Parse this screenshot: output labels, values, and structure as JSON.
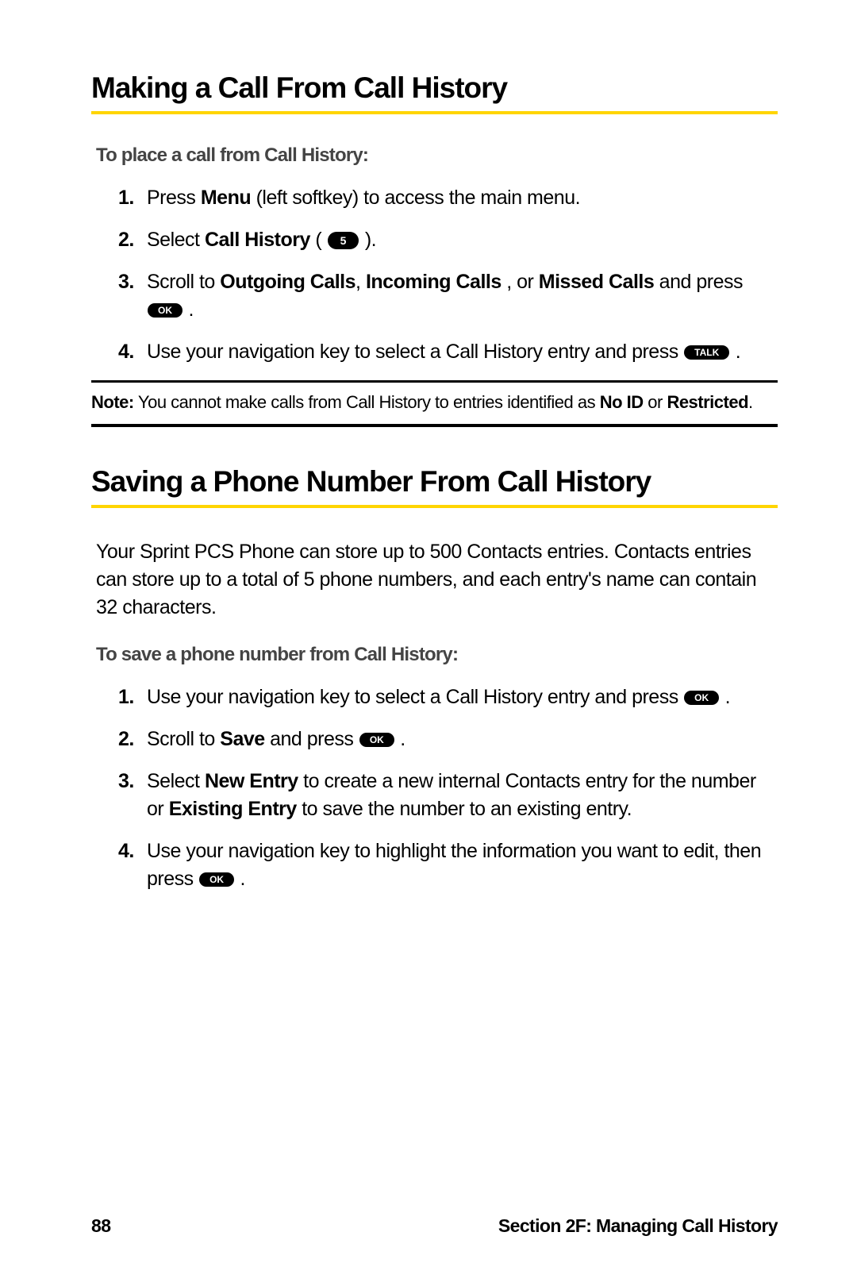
{
  "colors": {
    "underline": "#ffd500",
    "background": "#ffffff",
    "text": "#000000",
    "subheading": "#444444",
    "key_bg": "#000000",
    "key_fg": "#ffffff"
  },
  "section1": {
    "heading": "Making a Call From Call History",
    "subheading": "To place a call from Call History:",
    "step1_pre": "Press ",
    "step1_bold": "Menu",
    "step1_post": " (left softkey) to access the main menu.",
    "step2_pre": "Select ",
    "step2_bold": "Call History",
    "step2_post_a": " ( ",
    "step2_key": "5",
    "step2_post_b": " ).",
    "step3_pre": "Scroll to ",
    "step3_bold1": "Outgoing Calls",
    "step3_sep1": ", ",
    "step3_bold2": "Incoming Calls",
    "step3_sep2": " , or ",
    "step3_bold3": "Missed Calls",
    "step3_post_a": " and press ",
    "step3_key": "OK",
    "step3_post_b": " .",
    "step4_pre": "Use your navigation key to select a Call History entry and press ",
    "step4_key": "TALK",
    "step4_post": " ."
  },
  "note": {
    "label": "Note:",
    "text_a": " You cannot make calls from Call History to entries identified as ",
    "bold1": "No ID",
    "text_b": " or ",
    "bold2": "Restricted",
    "text_c": "."
  },
  "section2": {
    "heading": "Saving a Phone Number From Call History",
    "intro": "Your Sprint PCS Phone can store up to 500 Contacts entries. Contacts entries can store up to a total of 5 phone numbers, and each entry's name can contain 32 characters.",
    "subheading": "To save a phone number from Call History:",
    "step1_pre": "Use your navigation key to select a Call History entry and press ",
    "step1_key": "OK",
    "step1_post": " .",
    "step2_pre": "Scroll to ",
    "step2_bold": "Save",
    "step2_mid": " and press ",
    "step2_key": "OK",
    "step2_post": " .",
    "step3_pre": "Select ",
    "step3_bold1": "New Entry",
    "step3_mid1": " to create a new internal Contacts entry for the number or ",
    "step3_bold2": "Existing Entry",
    "step3_mid2": " to save the number to an existing entry.",
    "step4_pre": "Use your navigation key to highlight the information you want to edit, then press ",
    "step4_key": "OK",
    "step4_post": " ."
  },
  "footer": {
    "page": "88",
    "section": "Section 2F: Managing Call History"
  }
}
